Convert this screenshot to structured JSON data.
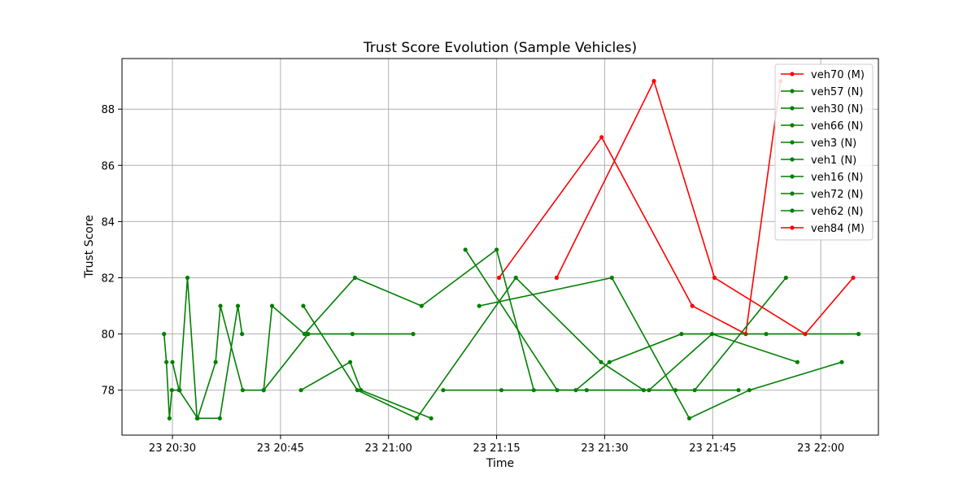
{
  "chart_data": {
    "type": "line",
    "title": "Trust Score Evolution (Sample Vehicles)",
    "xlabel": "Time",
    "ylabel": "Trust Score",
    "x_range": [
      "20:23",
      "22:08"
    ],
    "ylim": [
      76.4,
      89.8
    ],
    "x_ticks": [
      {
        "time": "20:30",
        "label": "23 20:30"
      },
      {
        "time": "20:45",
        "label": "23 20:45"
      },
      {
        "time": "21:00",
        "label": "23 21:00"
      },
      {
        "time": "21:15",
        "label": "23 21:15"
      },
      {
        "time": "21:30",
        "label": "23 21:30"
      },
      {
        "time": "21:45",
        "label": "23 21:45"
      },
      {
        "time": "22:00",
        "label": "23 22:00"
      }
    ],
    "y_ticks": [
      78,
      80,
      82,
      84,
      86,
      88
    ],
    "grid": true,
    "legend_position": "top-right",
    "series": [
      {
        "name": "veh70 (M)",
        "color": "#ff0000",
        "points": [
          [
            "21:15:20",
            82
          ],
          [
            "21:29:35",
            87
          ],
          [
            "21:42:10",
            81
          ],
          [
            "21:49:35",
            80
          ],
          [
            "21:54:25",
            89
          ]
        ]
      },
      {
        "name": "veh57 (N)",
        "color": "#008000",
        "points": [
          [
            "20:28:50",
            80
          ],
          [
            "20:29:10",
            79
          ],
          [
            "20:29:35",
            77
          ],
          [
            "20:29:55",
            78
          ],
          [
            "20:31:00",
            78
          ],
          [
            "20:32:05",
            82
          ],
          [
            "20:33:25",
            77
          ],
          [
            "20:36:35",
            77
          ],
          [
            "20:39:05",
            81
          ],
          [
            "20:39:40",
            80
          ]
        ]
      },
      {
        "name": "veh30 (N)",
        "color": "#008000",
        "points": [
          [
            "20:30:00",
            79
          ],
          [
            "20:30:55",
            78
          ],
          [
            "20:33:30",
            77
          ],
          [
            "20:36:00",
            79
          ],
          [
            "20:36:40",
            81
          ],
          [
            "20:39:45",
            78
          ],
          [
            "20:42:40",
            78
          ],
          [
            "20:43:50",
            81
          ],
          [
            "20:48:20",
            80
          ],
          [
            "20:55:20",
            82
          ],
          [
            "21:04:35",
            81
          ],
          [
            "21:15:00",
            83
          ],
          [
            "21:20:10",
            78
          ],
          [
            "21:26:00",
            78
          ],
          [
            "21:30:40",
            79
          ],
          [
            "21:40:40",
            80
          ],
          [
            "21:52:25",
            80
          ],
          [
            "22:05:15",
            80
          ]
        ]
      },
      {
        "name": "veh66 (N)",
        "color": "#008000",
        "points": [
          [
            "20:42:40",
            78
          ],
          [
            "20:48:50",
            80
          ],
          [
            "20:55:00",
            80
          ],
          [
            "21:03:25",
            80
          ]
        ]
      },
      {
        "name": "veh3 (N)",
        "color": "#008000",
        "points": [
          [
            "20:48:10",
            81
          ],
          [
            "20:55:40",
            78
          ],
          [
            "21:03:55",
            77
          ],
          [
            "21:17:40",
            82
          ],
          [
            "21:29:30",
            79
          ],
          [
            "21:35:25",
            78
          ],
          [
            "21:42:30",
            78
          ],
          [
            "21:55:10",
            82
          ]
        ]
      },
      {
        "name": "veh1 (N)",
        "color": "#008000",
        "points": [
          [
            "20:47:50",
            78
          ],
          [
            "20:54:40",
            79
          ],
          [
            "20:56:10",
            78
          ],
          [
            "21:05:55",
            77
          ]
        ]
      },
      {
        "name": "veh16 (N)",
        "color": "#008000",
        "points": [
          [
            "21:07:35",
            78
          ],
          [
            "21:15:40",
            78
          ],
          [
            "21:27:30",
            78
          ],
          [
            "21:39:50",
            78
          ],
          [
            "21:48:35",
            78
          ]
        ]
      },
      {
        "name": "veh72 (N)",
        "color": "#008000",
        "points": [
          [
            "21:10:40",
            83
          ],
          [
            "21:23:25",
            78
          ],
          [
            "21:36:10",
            78
          ],
          [
            "21:44:55",
            80
          ],
          [
            "21:56:45",
            79
          ]
        ]
      },
      {
        "name": "veh62 (N)",
        "color": "#008000",
        "points": [
          [
            "21:12:35",
            81
          ],
          [
            "21:31:00",
            82
          ],
          [
            "21:41:45",
            77
          ],
          [
            "21:50:05",
            78
          ],
          [
            "22:02:55",
            79
          ]
        ]
      },
      {
        "name": "veh84 (M)",
        "color": "#ff0000",
        "points": [
          [
            "21:23:20",
            82
          ],
          [
            "21:36:50",
            89
          ],
          [
            "21:45:15",
            82
          ],
          [
            "21:57:50",
            80
          ],
          [
            "22:04:30",
            82
          ]
        ]
      }
    ]
  }
}
